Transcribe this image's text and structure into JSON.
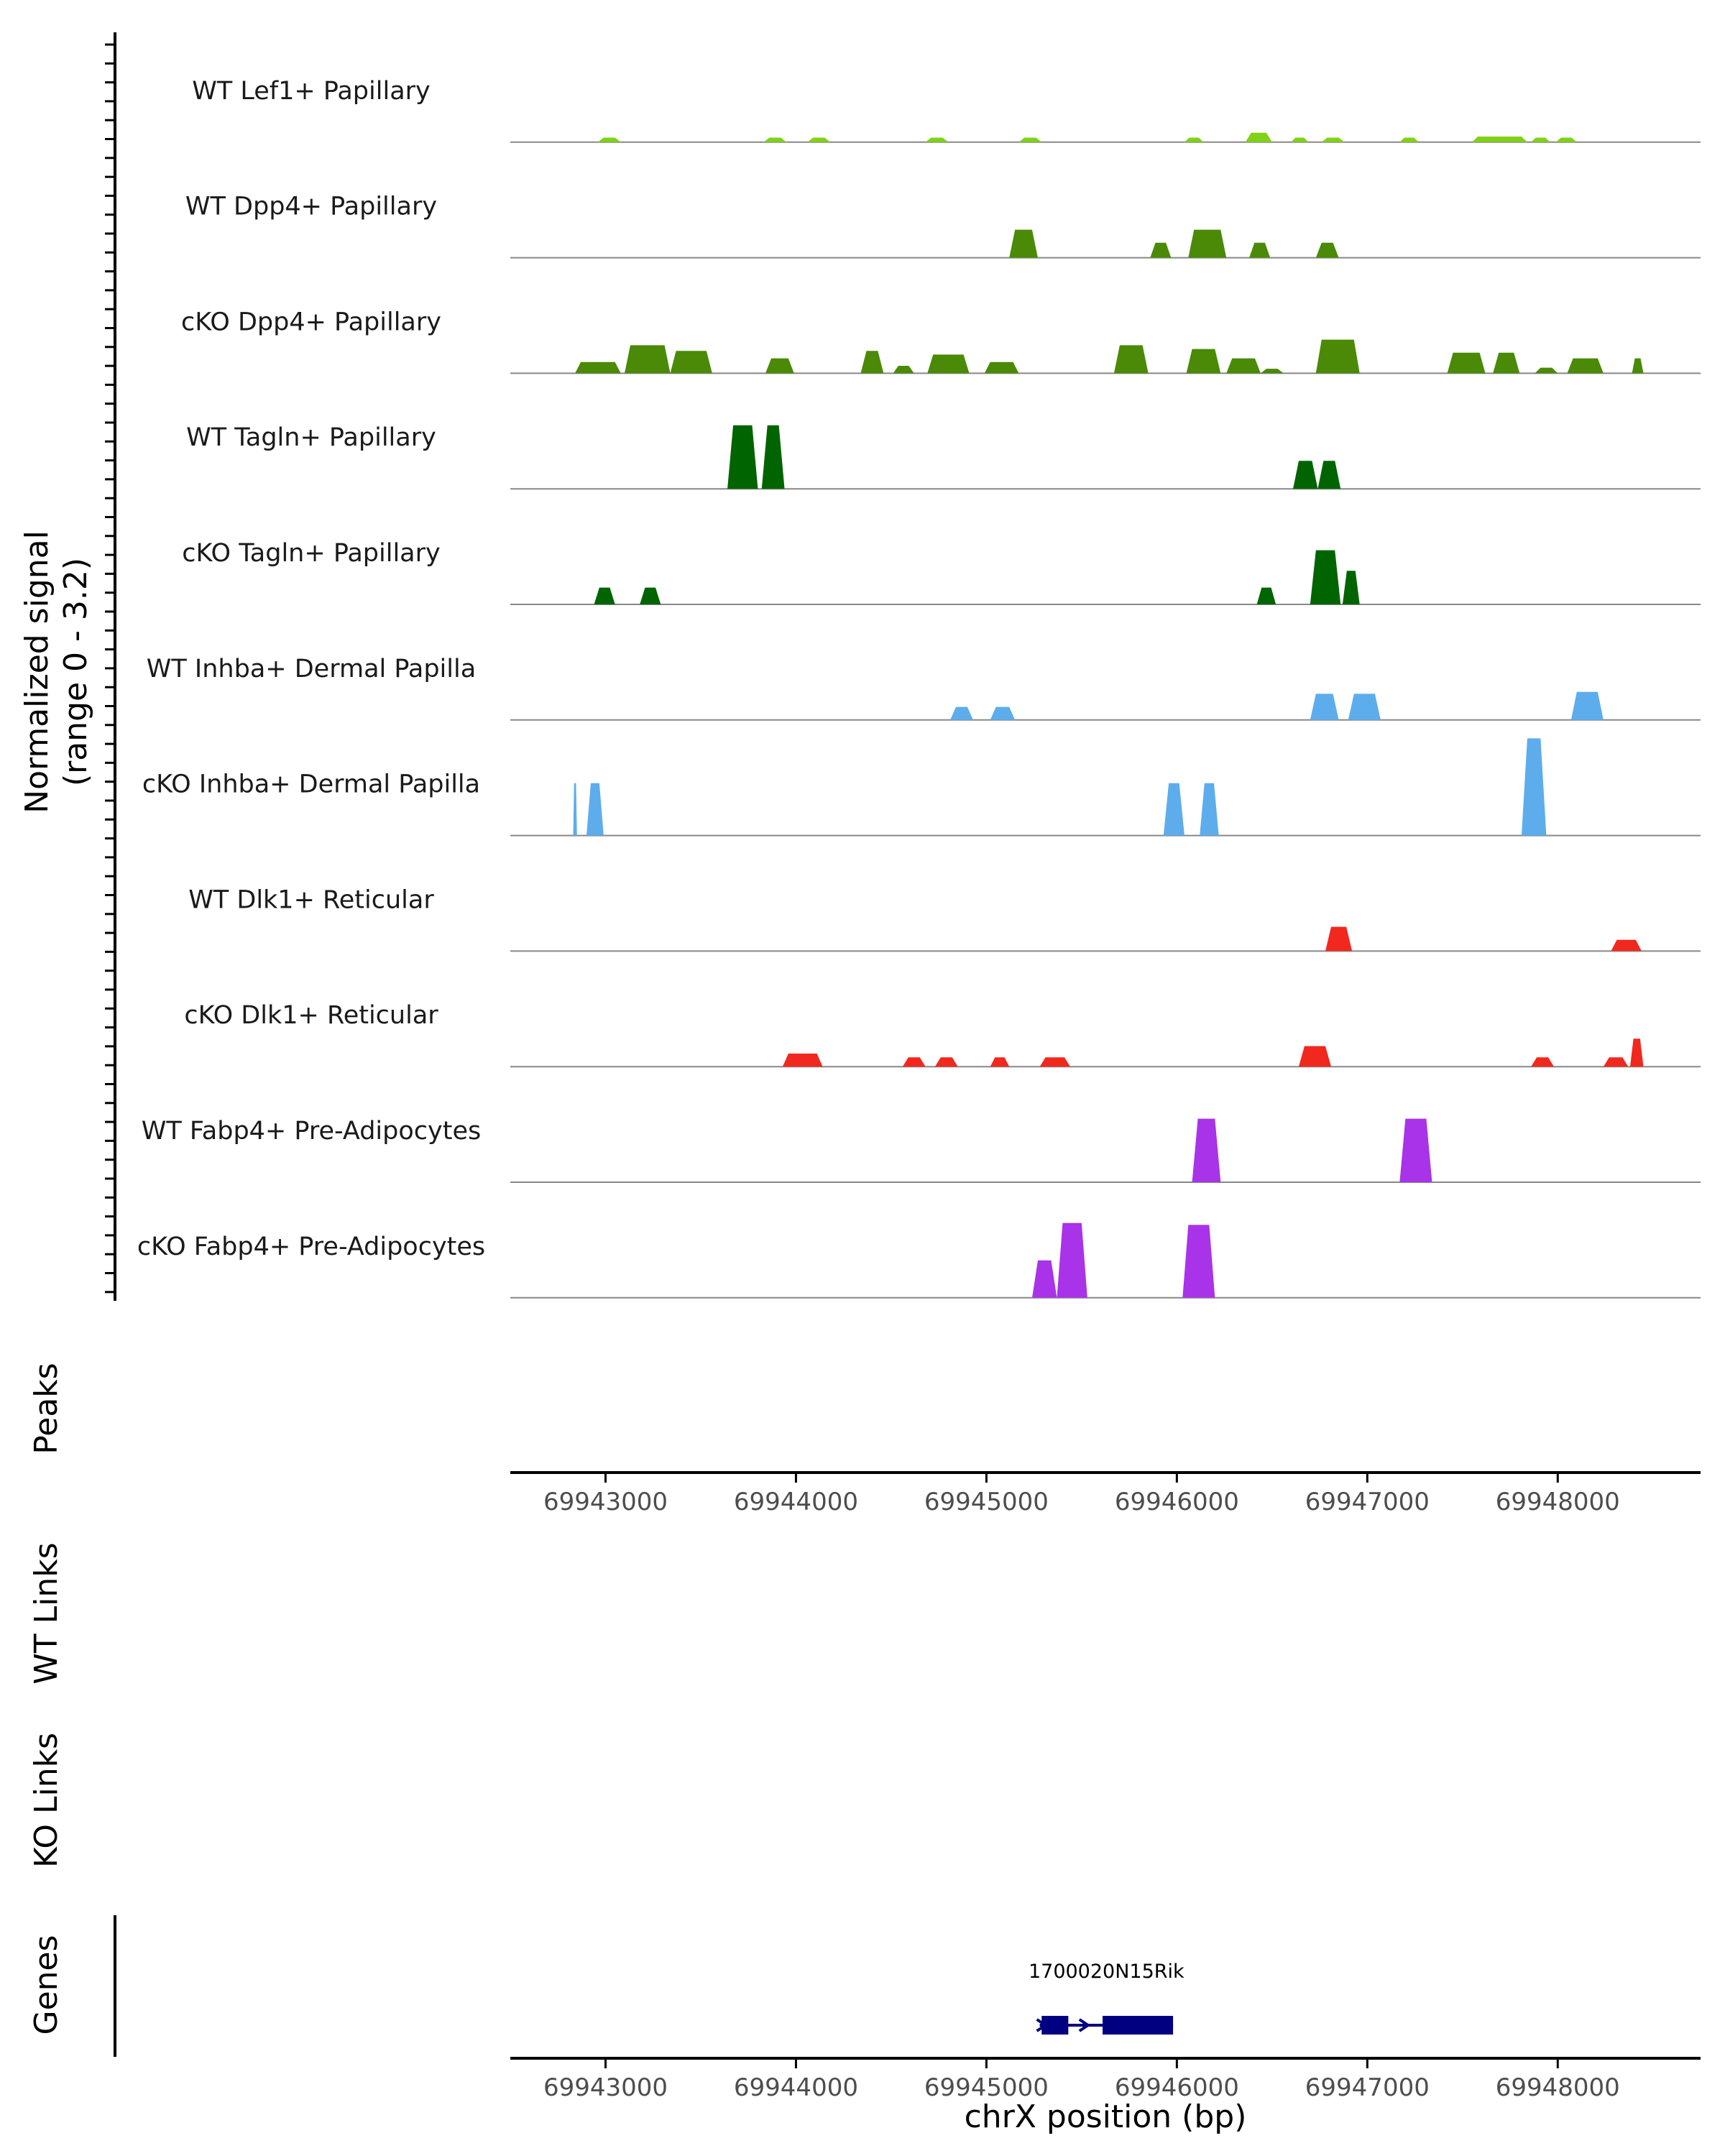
{
  "chart_data": {
    "type": "area",
    "region": {
      "chromosome": "chrX",
      "start": 69942500,
      "end": 69948750
    },
    "y_axis_label_line1": "Normalized signal",
    "y_axis_label_line2": "(range 0 - 3.2)",
    "ylim": [
      0,
      3.2
    ],
    "tracks": [
      {
        "name": "WT Lef1+ Papillary",
        "color": "#7FD216",
        "peaks": [
          [
            69942960,
            69943080,
            0.12
          ],
          [
            69943830,
            69943950,
            0.12
          ],
          [
            69944060,
            69944180,
            0.12
          ],
          [
            69944680,
            69944800,
            0.12
          ],
          [
            69945170,
            69945290,
            0.12
          ],
          [
            69946040,
            69946140,
            0.12
          ],
          [
            69946360,
            69946500,
            0.25
          ],
          [
            69946600,
            69946690,
            0.12
          ],
          [
            69946760,
            69946880,
            0.12
          ],
          [
            69947170,
            69947270,
            0.12
          ],
          [
            69947550,
            69947840,
            0.15
          ],
          [
            69947860,
            69947960,
            0.12
          ],
          [
            69947990,
            69948100,
            0.12
          ]
        ]
      },
      {
        "name": "WT Dpp4+ Papillary",
        "color": "#4A8A07",
        "peaks": [
          [
            69945120,
            69945270,
            0.75
          ],
          [
            69945860,
            69945970,
            0.4
          ],
          [
            69946060,
            69946260,
            0.75
          ],
          [
            69946380,
            69946490,
            0.4
          ],
          [
            69946730,
            69946850,
            0.4
          ]
        ]
      },
      {
        "name": "cKO Dpp4+ Papillary",
        "color": "#4A8A07",
        "peaks": [
          [
            69942840,
            69943080,
            0.3
          ],
          [
            69943100,
            69943340,
            0.75
          ],
          [
            69943340,
            69943560,
            0.6
          ],
          [
            69943840,
            69943990,
            0.4
          ],
          [
            69944340,
            69944460,
            0.6
          ],
          [
            69944510,
            69944620,
            0.2
          ],
          [
            69944690,
            69944910,
            0.5
          ],
          [
            69944990,
            69945170,
            0.3
          ],
          [
            69945670,
            69945850,
            0.75
          ],
          [
            69946050,
            69946230,
            0.65
          ],
          [
            69946260,
            69946440,
            0.4
          ],
          [
            69946440,
            69946560,
            0.12
          ],
          [
            69946730,
            69946960,
            0.9
          ],
          [
            69947420,
            69947620,
            0.55
          ],
          [
            69947660,
            69947800,
            0.55
          ],
          [
            69947880,
            69948000,
            0.15
          ],
          [
            69948050,
            69948240,
            0.4
          ],
          [
            69948390,
            69948450,
            0.4
          ]
        ]
      },
      {
        "name": "WT Tagln+ Papillary",
        "color": "#006400",
        "peaks": [
          [
            69943640,
            69943800,
            1.7
          ],
          [
            69943820,
            69943940,
            1.7
          ],
          [
            69946610,
            69946740,
            0.75
          ],
          [
            69946740,
            69946860,
            0.75
          ]
        ]
      },
      {
        "name": "cKO Tagln+ Papillary",
        "color": "#006400",
        "peaks": [
          [
            69942940,
            69943050,
            0.45
          ],
          [
            69943180,
            69943290,
            0.45
          ],
          [
            69946420,
            69946520,
            0.45
          ],
          [
            69946700,
            69946860,
            1.45
          ],
          [
            69946870,
            69946960,
            0.9
          ]
        ]
      },
      {
        "name": "WT Inhba+ Dermal Papilla",
        "color": "#5DADEC",
        "peaks": [
          [
            69944810,
            69944930,
            0.35
          ],
          [
            69945020,
            69945150,
            0.35
          ],
          [
            69946700,
            69946850,
            0.7
          ],
          [
            69946900,
            69947070,
            0.7
          ],
          [
            69948070,
            69948240,
            0.75
          ]
        ]
      },
      {
        "name": "cKO Inhba+ Dermal Papilla",
        "color": "#5DADEC",
        "peaks": [
          [
            69942830,
            69942850,
            1.4
          ],
          [
            69942900,
            69942990,
            1.4
          ],
          [
            69945930,
            69946040,
            1.4
          ],
          [
            69946120,
            69946220,
            1.4
          ],
          [
            69947810,
            69947940,
            2.6
          ]
        ]
      },
      {
        "name": "WT Dlk1+ Reticular",
        "color": "#F0281E",
        "peaks": [
          [
            69946780,
            69946920,
            0.65
          ],
          [
            69948280,
            69948440,
            0.3
          ]
        ]
      },
      {
        "name": "cKO Dlk1+ Reticular",
        "color": "#F0281E",
        "peaks": [
          [
            69943930,
            69944140,
            0.35
          ],
          [
            69944560,
            69944680,
            0.25
          ],
          [
            69944730,
            69944850,
            0.25
          ],
          [
            69945020,
            69945120,
            0.25
          ],
          [
            69945280,
            69945440,
            0.25
          ],
          [
            69946640,
            69946810,
            0.55
          ],
          [
            69947860,
            69947980,
            0.25
          ],
          [
            69948240,
            69948370,
            0.25
          ],
          [
            69948380,
            69948450,
            0.75
          ]
        ]
      },
      {
        "name": "WT Fabp4+ Pre-Adipocytes",
        "color": "#A833E8",
        "peaks": [
          [
            69946080,
            69946230,
            1.7
          ],
          [
            69947170,
            69947340,
            1.7
          ]
        ]
      },
      {
        "name": "cKO Fabp4+ Pre-Adipocytes",
        "color": "#A833E8",
        "peaks": [
          [
            69945240,
            69945370,
            1.0
          ],
          [
            69945370,
            69945530,
            2.0
          ],
          [
            69946030,
            69946200,
            1.95
          ]
        ]
      }
    ],
    "panel_labels": {
      "peaks": "Peaks",
      "wt_links": "WT Links",
      "ko_links": "KO Links",
      "genes": "Genes"
    },
    "x_ticks": [
      69943000,
      69944000,
      69945000,
      69946000,
      69947000,
      69948000
    ],
    "x_tick_labels": [
      "69943000",
      "69944000",
      "69945000",
      "69946000",
      "69947000",
      "69948000"
    ],
    "xlabel": "chrX position (bp)",
    "gene": {
      "name": "1700020N15Rik",
      "start": 69945280,
      "end": 69945980,
      "exons": [
        [
          69945290,
          69945430
        ],
        [
          69945610,
          69945980
        ]
      ],
      "color": "#000080"
    }
  }
}
